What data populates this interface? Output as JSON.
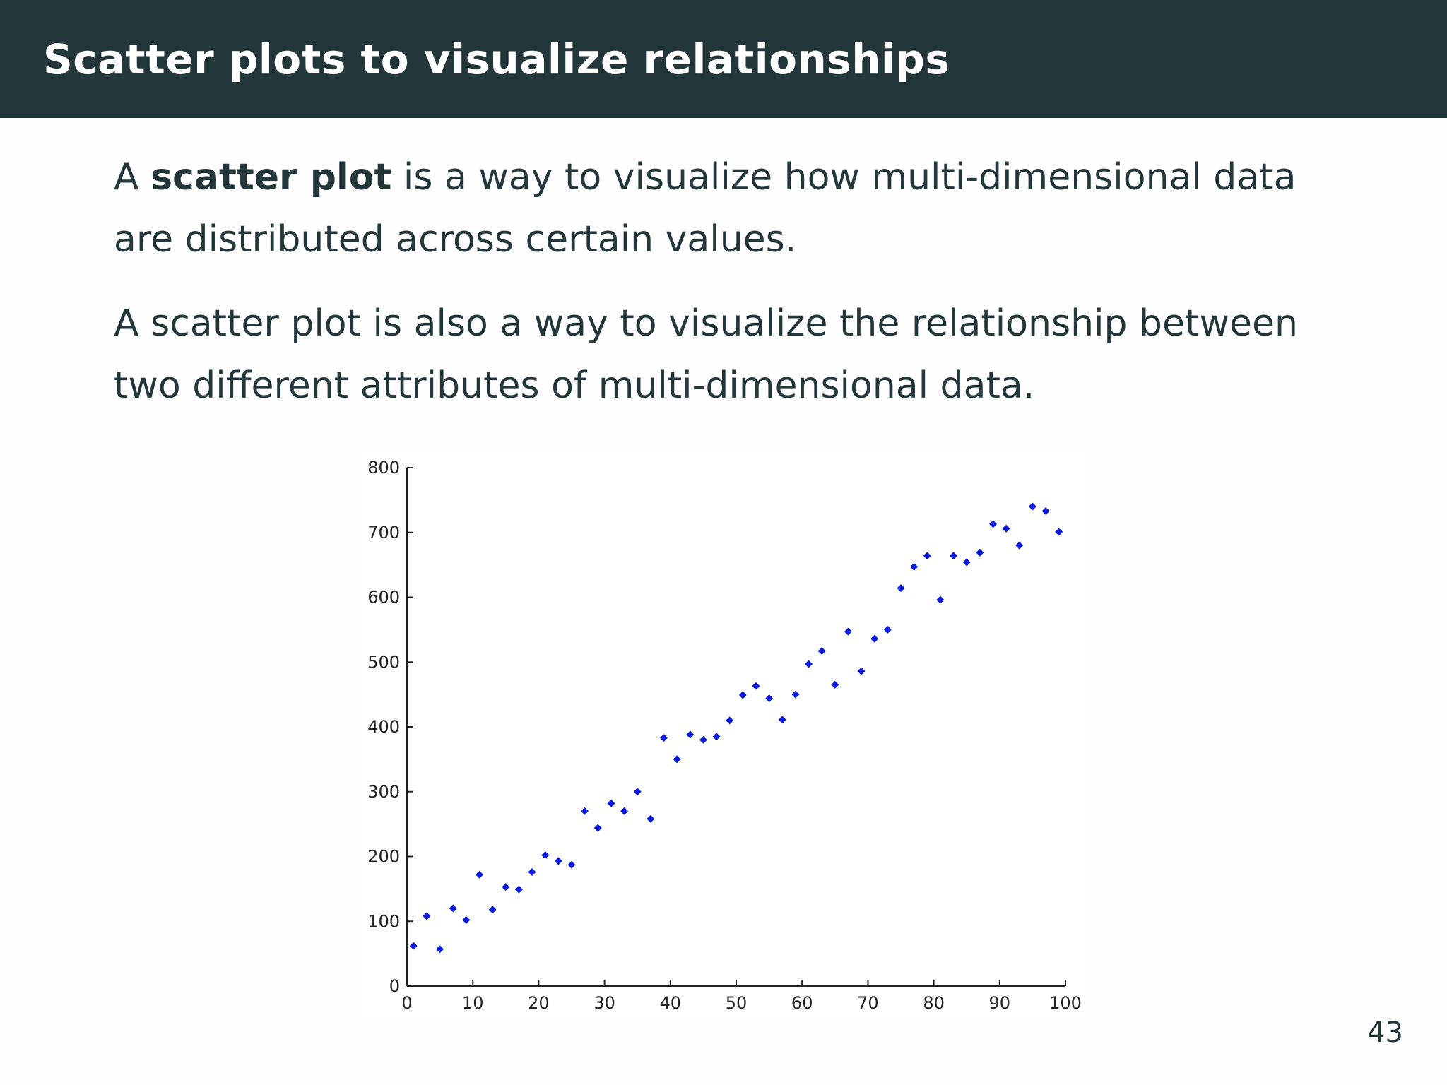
{
  "slide": {
    "title": "Scatter plots to visualize relationships",
    "para1": {
      "before": "A ",
      "bold": "scatter plot",
      "after_line1": " is a way to visualize how multi-dimensional data",
      "line2": "are distributed across certain values."
    },
    "para2": {
      "line1": "A scatter plot is also a way to visualize the relationship between",
      "line2": "two different attributes of multi-dimensional data."
    },
    "page_number": "43"
  },
  "colors": {
    "title_bar": "#23373b",
    "text": "#23373b",
    "points": "#0a1adb",
    "axis": "#222222"
  },
  "chart_data": {
    "type": "scatter",
    "title": "",
    "xlabel": "",
    "ylabel": "",
    "xlim": [
      0,
      100
    ],
    "ylim": [
      0,
      800
    ],
    "x_ticks": [
      0,
      10,
      20,
      30,
      40,
      50,
      60,
      70,
      80,
      90,
      100
    ],
    "y_ticks": [
      0,
      100,
      200,
      300,
      400,
      500,
      600,
      700,
      800
    ],
    "x_tick_labels": [
      "0",
      "10",
      "20",
      "30",
      "40",
      "50",
      "60",
      "70",
      "80",
      "90",
      "100"
    ],
    "y_tick_labels": [
      "0",
      "100",
      "200",
      "300",
      "400",
      "500",
      "600",
      "700",
      "800"
    ],
    "grid": false,
    "legend": "none",
    "marker": "diamond",
    "series": [
      {
        "x": [
          1,
          3,
          5,
          7,
          9,
          11,
          13,
          15,
          17,
          19,
          21,
          23,
          25,
          27,
          29,
          31,
          33,
          35,
          37,
          39,
          41,
          43,
          45,
          47,
          49,
          51,
          53,
          55,
          57,
          59,
          61,
          63,
          65,
          67,
          69,
          71,
          73,
          75,
          77,
          79,
          81,
          83,
          85,
          87,
          89,
          91,
          93,
          95,
          97,
          99
        ],
        "y": [
          62,
          108,
          57,
          120,
          102,
          172,
          118,
          153,
          149,
          176,
          202,
          193,
          187,
          270,
          244,
          282,
          270,
          300,
          258,
          383,
          350,
          388,
          380,
          385,
          410,
          449,
          463,
          444,
          411,
          450,
          497,
          517,
          465,
          547,
          486,
          536,
          550,
          614,
          647,
          664,
          596,
          664,
          654,
          669,
          713,
          706,
          680,
          740,
          733,
          701
        ]
      }
    ]
  }
}
